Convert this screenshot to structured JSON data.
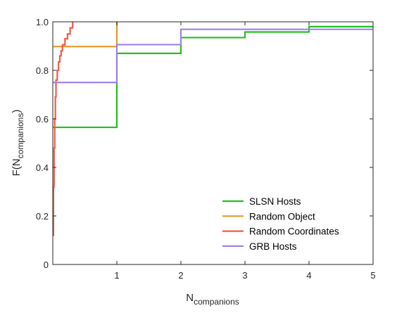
{
  "chart_data": {
    "type": "line",
    "subtype": "empirical-cdf-staircase",
    "title": "",
    "xlabel": {
      "main": "N",
      "sub": "companions"
    },
    "ylabel": {
      "pre": "F(N",
      "sub": "companions",
      "post": ")"
    },
    "xlim": [
      0,
      5
    ],
    "ylim": [
      0,
      1
    ],
    "xticks": [
      "1",
      "2",
      "3",
      "4",
      "5"
    ],
    "yticks": [
      "0",
      "0.2",
      "0.4",
      "0.6",
      "0.8",
      "1.0"
    ],
    "grid": false,
    "legend_position": "bottom-right",
    "series": [
      {
        "name": "SLSN Hosts",
        "color": "#22c11f",
        "x": [
          0,
          1,
          1,
          2,
          2,
          3,
          3,
          4,
          4,
          5
        ],
        "y": [
          0.565,
          0.565,
          0.87,
          0.87,
          0.935,
          0.935,
          0.958,
          0.958,
          0.98,
          0.98
        ]
      },
      {
        "name": "Random Object",
        "color": "#e09a2c",
        "x": [
          0,
          1,
          1
        ],
        "y": [
          0.898,
          0.898,
          1.0
        ]
      },
      {
        "name": "Random Coordinates",
        "color": "#f45a46",
        "x": [
          0.0,
          0.01,
          0.01,
          0.02,
          0.02,
          0.03,
          0.03,
          0.04,
          0.04,
          0.05,
          0.05,
          0.07,
          0.07,
          0.09,
          0.09,
          0.11,
          0.11,
          0.13,
          0.13,
          0.15,
          0.15,
          0.19,
          0.19,
          0.23,
          0.23,
          0.27,
          0.27,
          0.31,
          0.31
        ],
        "y": [
          0.12,
          0.12,
          0.32,
          0.32,
          0.48,
          0.48,
          0.6,
          0.6,
          0.69,
          0.69,
          0.76,
          0.76,
          0.8,
          0.8,
          0.835,
          0.835,
          0.86,
          0.86,
          0.88,
          0.88,
          0.905,
          0.905,
          0.93,
          0.93,
          0.95,
          0.95,
          0.975,
          0.975,
          1.0
        ]
      },
      {
        "name": "GRB Hosts",
        "color": "#9f82e6",
        "x": [
          0,
          1,
          1,
          2,
          2,
          5
        ],
        "y": [
          0.75,
          0.75,
          0.906,
          0.906,
          0.969,
          0.969
        ]
      }
    ]
  }
}
